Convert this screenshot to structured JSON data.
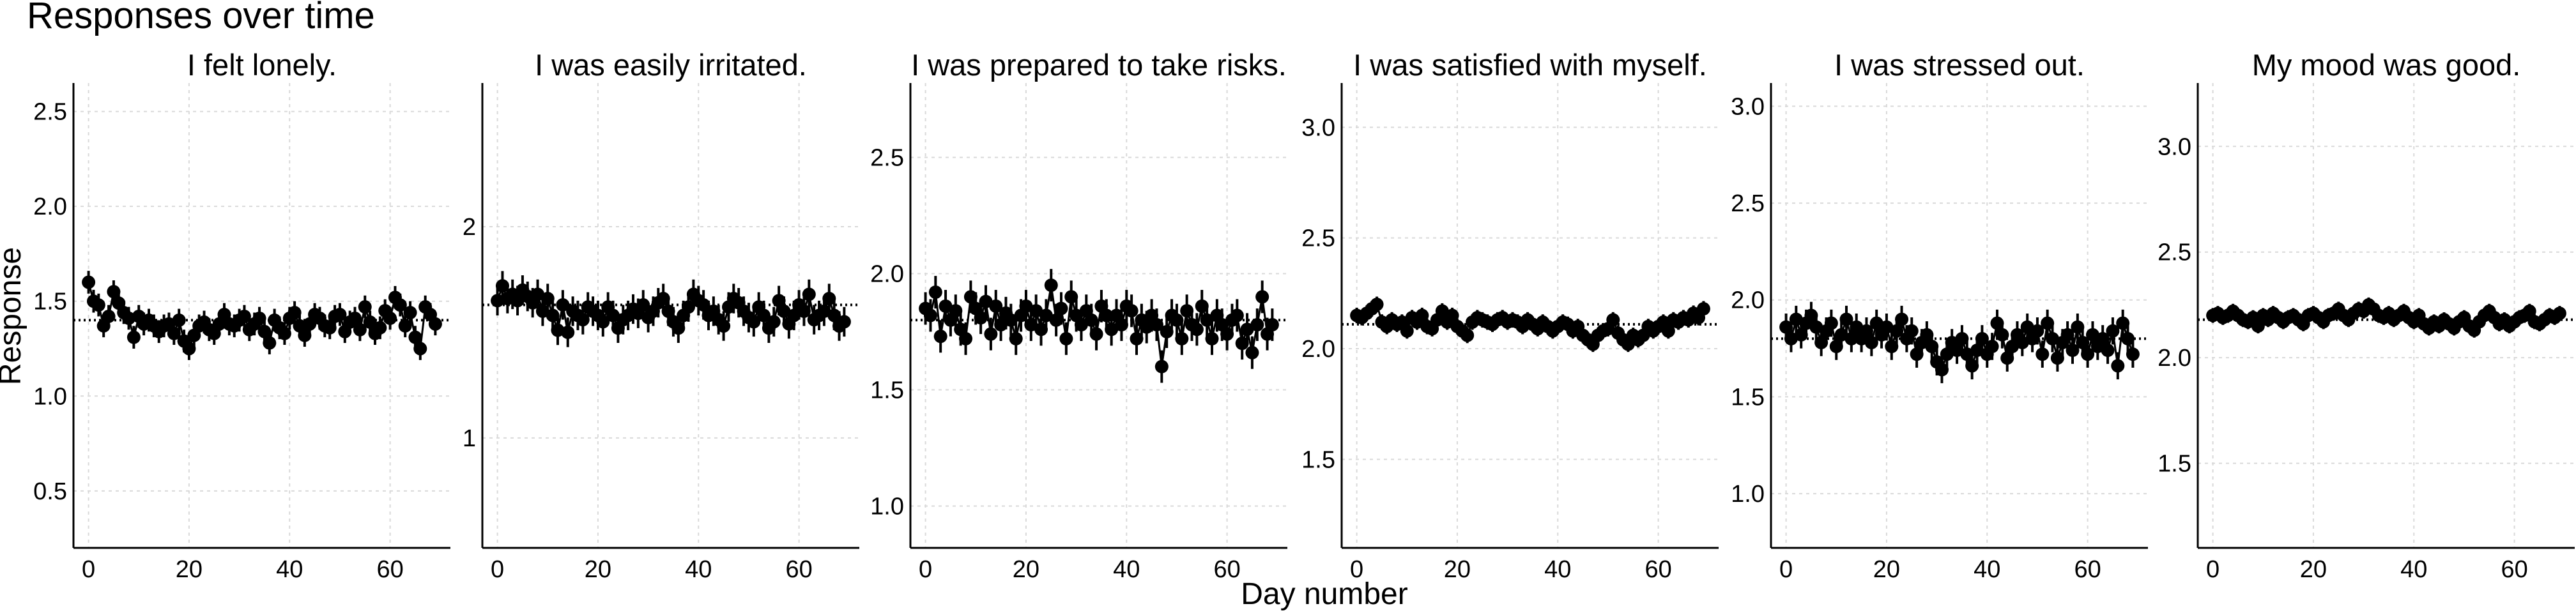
{
  "figure": {
    "title": "Responses over time",
    "xlabel": "Day number",
    "ylabel": "Response",
    "colors": {
      "points": "#000000",
      "grid": "#d9d9d9",
      "reference_line": "#000000"
    }
  },
  "chart_data": [
    {
      "type": "scatter",
      "title": "I felt lonely.",
      "xlim": [
        -3,
        72
      ],
      "ylim": [
        0.2,
        2.65
      ],
      "xticks": [
        0,
        20,
        40,
        60
      ],
      "yticks": [
        0.5,
        1.0,
        1.5,
        2.0,
        2.5
      ],
      "ytick_labels": [
        "0.5",
        "1.0",
        "1.5",
        "2.0",
        "2.5"
      ],
      "reference_line": 1.4,
      "grid": true,
      "error_bar": 0.06,
      "x": [
        0,
        1,
        2,
        3,
        4,
        5,
        6,
        7,
        8,
        9,
        10,
        11,
        12,
        13,
        14,
        15,
        16,
        17,
        18,
        19,
        20,
        21,
        22,
        23,
        24,
        25,
        26,
        27,
        28,
        29,
        30,
        31,
        32,
        33,
        34,
        35,
        36,
        37,
        38,
        39,
        40,
        41,
        42,
        43,
        44,
        45,
        46,
        47,
        48,
        49,
        50,
        51,
        52,
        53,
        54,
        55,
        56,
        57,
        58,
        59,
        60,
        61,
        62,
        63,
        64,
        65,
        66,
        67,
        68,
        69
      ],
      "y": [
        1.6,
        1.5,
        1.48,
        1.37,
        1.42,
        1.55,
        1.49,
        1.44,
        1.41,
        1.31,
        1.42,
        1.38,
        1.4,
        1.37,
        1.34,
        1.37,
        1.38,
        1.33,
        1.4,
        1.29,
        1.25,
        1.32,
        1.37,
        1.39,
        1.35,
        1.33,
        1.38,
        1.43,
        1.38,
        1.37,
        1.4,
        1.42,
        1.35,
        1.38,
        1.41,
        1.34,
        1.28,
        1.4,
        1.36,
        1.33,
        1.41,
        1.44,
        1.37,
        1.32,
        1.38,
        1.43,
        1.41,
        1.37,
        1.36,
        1.42,
        1.43,
        1.34,
        1.39,
        1.41,
        1.35,
        1.47,
        1.39,
        1.33,
        1.36,
        1.45,
        1.41,
        1.52,
        1.48,
        1.37,
        1.44,
        1.31,
        1.25,
        1.47,
        1.43,
        1.38
      ]
    },
    {
      "type": "scatter",
      "title": "I was easily irritated.",
      "xlim": [
        -3,
        72
      ],
      "ylim": [
        0.48,
        2.68
      ],
      "xticks": [
        0,
        20,
        40,
        60
      ],
      "yticks": [
        1,
        2
      ],
      "ytick_labels": [
        "1",
        "2"
      ],
      "reference_line": 1.63,
      "grid": true,
      "error_bar": 0.07,
      "x": [
        0,
        1,
        2,
        3,
        4,
        5,
        6,
        7,
        8,
        9,
        10,
        11,
        12,
        13,
        14,
        15,
        16,
        17,
        18,
        19,
        20,
        21,
        22,
        23,
        24,
        25,
        26,
        27,
        28,
        29,
        30,
        31,
        32,
        33,
        34,
        35,
        36,
        37,
        38,
        39,
        40,
        41,
        42,
        43,
        44,
        45,
        46,
        47,
        48,
        49,
        50,
        51,
        52,
        53,
        54,
        55,
        56,
        57,
        58,
        59,
        60,
        61,
        62,
        63,
        64,
        65,
        66,
        67,
        68,
        69
      ],
      "y": [
        1.65,
        1.72,
        1.66,
        1.68,
        1.65,
        1.7,
        1.67,
        1.64,
        1.68,
        1.6,
        1.66,
        1.58,
        1.51,
        1.63,
        1.5,
        1.6,
        1.58,
        1.56,
        1.62,
        1.6,
        1.58,
        1.55,
        1.62,
        1.58,
        1.52,
        1.56,
        1.58,
        1.61,
        1.59,
        1.63,
        1.57,
        1.6,
        1.64,
        1.66,
        1.6,
        1.55,
        1.52,
        1.58,
        1.62,
        1.68,
        1.65,
        1.63,
        1.58,
        1.6,
        1.56,
        1.53,
        1.62,
        1.66,
        1.64,
        1.6,
        1.57,
        1.55,
        1.62,
        1.58,
        1.52,
        1.55,
        1.65,
        1.6,
        1.54,
        1.58,
        1.63,
        1.6,
        1.68,
        1.56,
        1.58,
        1.6,
        1.66,
        1.58,
        1.53,
        1.55
      ]
    },
    {
      "type": "scatter",
      "title": "I was prepared to take risks.",
      "xlim": [
        -3,
        72
      ],
      "ylim": [
        0.82,
        2.82
      ],
      "xticks": [
        0,
        20,
        40,
        60
      ],
      "yticks": [
        1.0,
        1.5,
        2.0,
        2.5
      ],
      "ytick_labels": [
        "1.0",
        "1.5",
        "2.0",
        "2.5"
      ],
      "reference_line": 1.8,
      "grid": true,
      "error_bar": 0.07,
      "x": [
        0,
        1,
        2,
        3,
        4,
        5,
        6,
        7,
        8,
        9,
        10,
        11,
        12,
        13,
        14,
        15,
        16,
        17,
        18,
        19,
        20,
        21,
        22,
        23,
        24,
        25,
        26,
        27,
        28,
        29,
        30,
        31,
        32,
        33,
        34,
        35,
        36,
        37,
        38,
        39,
        40,
        41,
        42,
        43,
        44,
        45,
        46,
        47,
        48,
        49,
        50,
        51,
        52,
        53,
        54,
        55,
        56,
        57,
        58,
        59,
        60,
        61,
        62,
        63,
        64,
        65,
        66,
        67,
        68,
        69
      ],
      "y": [
        1.85,
        1.82,
        1.92,
        1.73,
        1.86,
        1.8,
        1.84,
        1.76,
        1.72,
        1.9,
        1.85,
        1.81,
        1.88,
        1.74,
        1.86,
        1.78,
        1.83,
        1.8,
        1.72,
        1.82,
        1.86,
        1.78,
        1.84,
        1.76,
        1.82,
        1.95,
        1.8,
        1.85,
        1.72,
        1.9,
        1.82,
        1.78,
        1.84,
        1.8,
        1.74,
        1.86,
        1.82,
        1.76,
        1.82,
        1.78,
        1.86,
        1.84,
        1.72,
        1.8,
        1.77,
        1.82,
        1.78,
        1.6,
        1.75,
        1.82,
        1.8,
        1.72,
        1.84,
        1.78,
        1.76,
        1.86,
        1.8,
        1.72,
        1.82,
        1.78,
        1.74,
        1.8,
        1.82,
        1.7,
        1.76,
        1.66,
        1.78,
        1.9,
        1.74,
        1.78
      ]
    },
    {
      "type": "scatter",
      "title": "I was satisfied with myself.",
      "xlim": [
        -3,
        72
      ],
      "ylim": [
        1.1,
        3.2
      ],
      "xticks": [
        0,
        20,
        40,
        60
      ],
      "yticks": [
        1.5,
        2.0,
        2.5,
        3.0
      ],
      "ytick_labels": [
        "1.5",
        "2.0",
        "2.5",
        "3.0"
      ],
      "reference_line": 2.11,
      "grid": true,
      "error_bar": 0.035,
      "x": [
        0,
        1,
        2,
        3,
        4,
        5,
        6,
        7,
        8,
        9,
        10,
        11,
        12,
        13,
        14,
        15,
        16,
        17,
        18,
        19,
        20,
        21,
        22,
        23,
        24,
        25,
        26,
        27,
        28,
        29,
        30,
        31,
        32,
        33,
        34,
        35,
        36,
        37,
        38,
        39,
        40,
        41,
        42,
        43,
        44,
        45,
        46,
        47,
        48,
        49,
        50,
        51,
        52,
        53,
        54,
        55,
        56,
        57,
        58,
        59,
        60,
        61,
        62,
        63,
        64,
        65,
        66,
        67,
        68,
        69
      ],
      "y": [
        2.15,
        2.14,
        2.16,
        2.18,
        2.2,
        2.12,
        2.1,
        2.13,
        2.11,
        2.12,
        2.08,
        2.14,
        2.12,
        2.15,
        2.1,
        2.09,
        2.13,
        2.17,
        2.12,
        2.15,
        2.1,
        2.08,
        2.06,
        2.12,
        2.14,
        2.13,
        2.12,
        2.11,
        2.13,
        2.14,
        2.12,
        2.13,
        2.12,
        2.1,
        2.13,
        2.11,
        2.09,
        2.12,
        2.1,
        2.08,
        2.1,
        2.12,
        2.11,
        2.08,
        2.1,
        2.06,
        2.04,
        2.02,
        2.06,
        2.08,
        2.09,
        2.13,
        2.07,
        2.04,
        2.02,
        2.06,
        2.04,
        2.06,
        2.1,
        2.08,
        2.1,
        2.12,
        2.08,
        2.13,
        2.12,
        2.14,
        2.13,
        2.16,
        2.14,
        2.18
      ]
    },
    {
      "type": "scatter",
      "title": "I was stressed out.",
      "xlim": [
        -3,
        72
      ],
      "ylim": [
        0.72,
        3.12
      ],
      "xticks": [
        0,
        20,
        40,
        60
      ],
      "yticks": [
        1.0,
        1.5,
        2.0,
        2.5,
        3.0
      ],
      "ytick_labels": [
        "1.0",
        "1.5",
        "2.0",
        "2.5",
        "3.0"
      ],
      "reference_line": 1.8,
      "grid": true,
      "error_bar": 0.07,
      "x": [
        0,
        1,
        2,
        3,
        4,
        5,
        6,
        7,
        8,
        9,
        10,
        11,
        12,
        13,
        14,
        15,
        16,
        17,
        18,
        19,
        20,
        21,
        22,
        23,
        24,
        25,
        26,
        27,
        28,
        29,
        30,
        31,
        32,
        33,
        34,
        35,
        36,
        37,
        38,
        39,
        40,
        41,
        42,
        43,
        44,
        45,
        46,
        47,
        48,
        49,
        50,
        51,
        52,
        53,
        54,
        55,
        56,
        57,
        58,
        59,
        60,
        61,
        62,
        63,
        64,
        65,
        66,
        67,
        68,
        69
      ],
      "y": [
        1.86,
        1.8,
        1.9,
        1.82,
        1.88,
        1.92,
        1.86,
        1.78,
        1.84,
        1.88,
        1.76,
        1.82,
        1.9,
        1.8,
        1.86,
        1.8,
        1.84,
        1.78,
        1.88,
        1.82,
        1.86,
        1.76,
        1.84,
        1.9,
        1.8,
        1.84,
        1.72,
        1.78,
        1.82,
        1.76,
        1.68,
        1.64,
        1.72,
        1.78,
        1.74,
        1.8,
        1.72,
        1.66,
        1.74,
        1.8,
        1.72,
        1.76,
        1.88,
        1.82,
        1.7,
        1.76,
        1.82,
        1.78,
        1.86,
        1.8,
        1.84,
        1.72,
        1.88,
        1.8,
        1.7,
        1.78,
        1.82,
        1.74,
        1.86,
        1.78,
        1.72,
        1.82,
        1.76,
        1.8,
        1.74,
        1.84,
        1.66,
        1.88,
        1.8,
        1.72
      ]
    },
    {
      "type": "scatter",
      "title": "My mood was good.",
      "xlim": [
        -3,
        72
      ],
      "ylim": [
        1.1,
        3.3
      ],
      "xticks": [
        0,
        20,
        40,
        60
      ],
      "yticks": [
        1.5,
        2.0,
        2.5,
        3.0
      ],
      "ytick_labels": [
        "1.5",
        "2.0",
        "2.5",
        "3.0"
      ],
      "reference_line": 2.18,
      "grid": true,
      "error_bar": 0.035,
      "x": [
        0,
        1,
        2,
        3,
        4,
        5,
        6,
        7,
        8,
        9,
        10,
        11,
        12,
        13,
        14,
        15,
        16,
        17,
        18,
        19,
        20,
        21,
        22,
        23,
        24,
        25,
        26,
        27,
        28,
        29,
        30,
        31,
        32,
        33,
        34,
        35,
        36,
        37,
        38,
        39,
        40,
        41,
        42,
        43,
        44,
        45,
        46,
        47,
        48,
        49,
        50,
        51,
        52,
        53,
        54,
        55,
        56,
        57,
        58,
        59,
        60,
        61,
        62,
        63,
        64,
        65,
        66,
        67,
        68,
        69
      ],
      "y": [
        2.2,
        2.21,
        2.19,
        2.2,
        2.22,
        2.2,
        2.18,
        2.17,
        2.19,
        2.15,
        2.2,
        2.18,
        2.21,
        2.19,
        2.17,
        2.19,
        2.2,
        2.18,
        2.16,
        2.2,
        2.21,
        2.19,
        2.17,
        2.2,
        2.21,
        2.23,
        2.2,
        2.18,
        2.21,
        2.23,
        2.22,
        2.25,
        2.23,
        2.2,
        2.19,
        2.21,
        2.18,
        2.2,
        2.22,
        2.19,
        2.17,
        2.2,
        2.16,
        2.14,
        2.17,
        2.15,
        2.18,
        2.16,
        2.14,
        2.17,
        2.19,
        2.15,
        2.13,
        2.17,
        2.2,
        2.22,
        2.19,
        2.16,
        2.18,
        2.15,
        2.17,
        2.19,
        2.2,
        2.22,
        2.17,
        2.16,
        2.18,
        2.2,
        2.19,
        2.21
      ]
    }
  ]
}
